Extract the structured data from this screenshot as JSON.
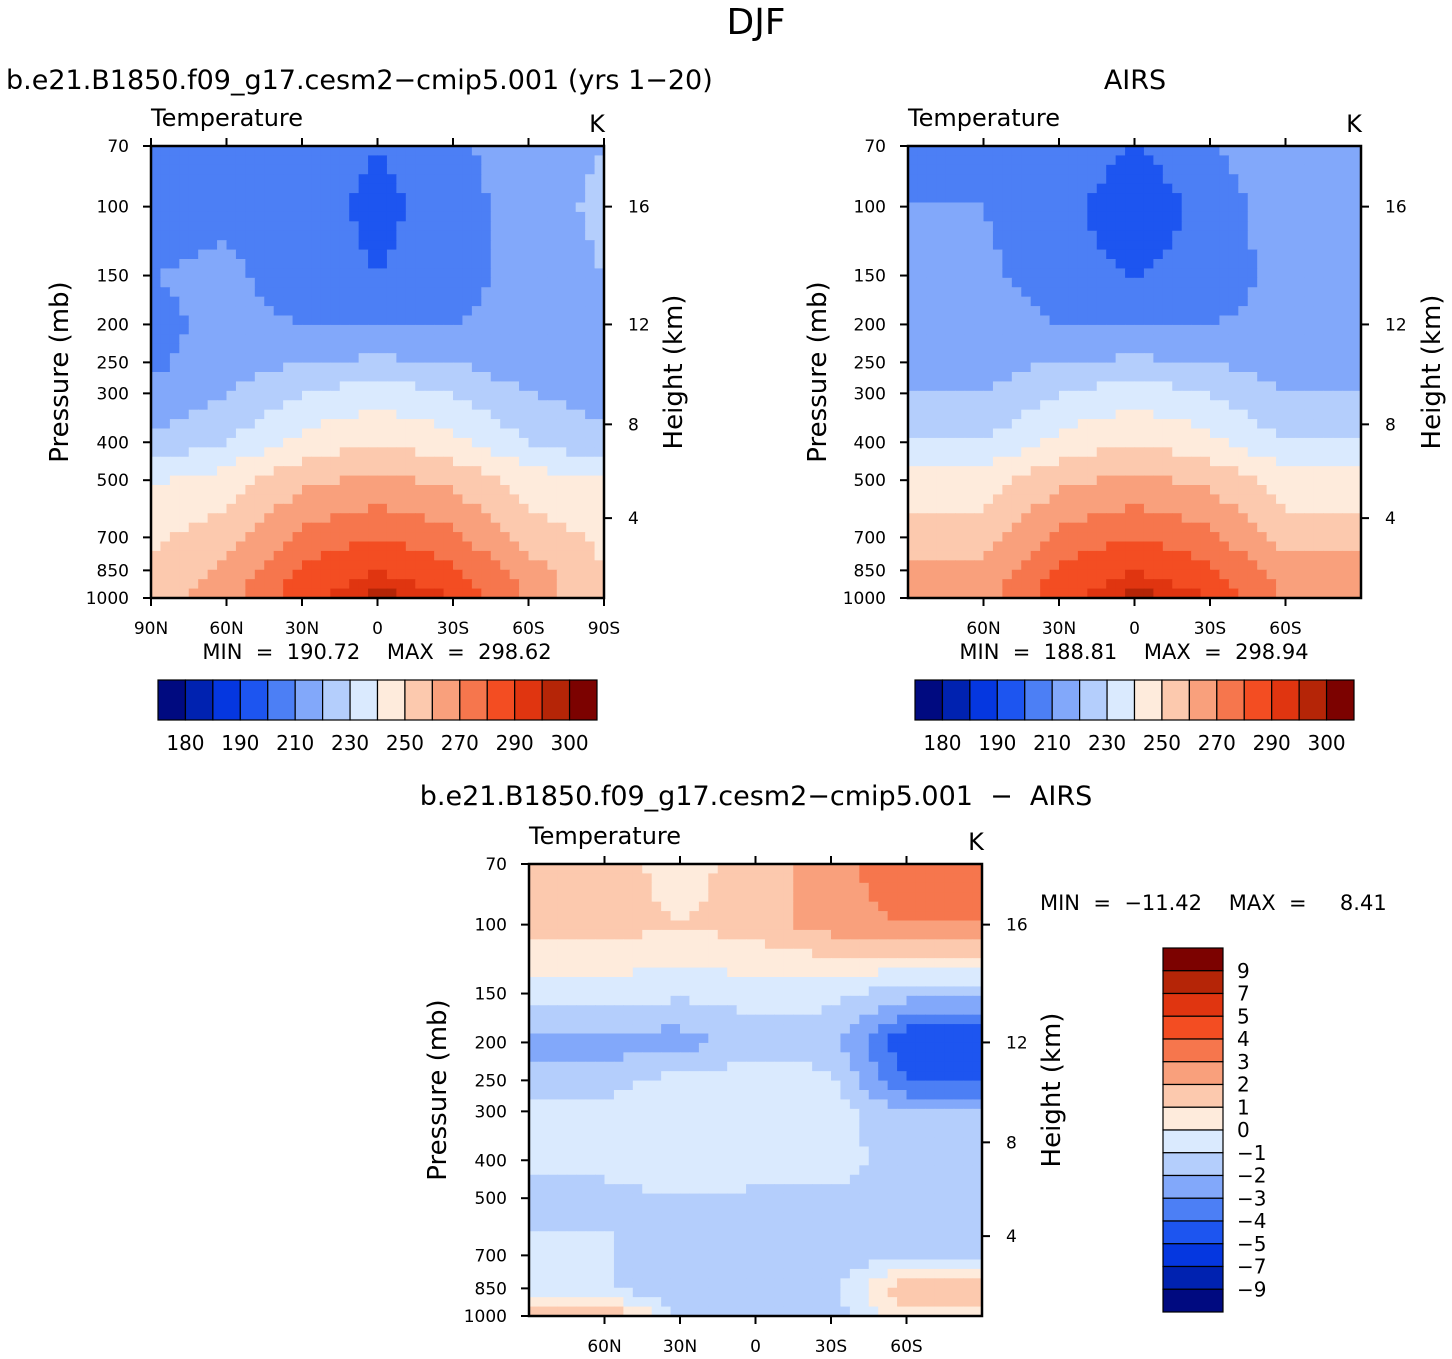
{
  "page_title": "DJF",
  "colors": {
    "abs_levels": [
      "#000a80",
      "#0022b0",
      "#0537e0",
      "#1d55f0",
      "#4c7ff5",
      "#82a8fa",
      "#b4cefc",
      "#daeafe",
      "#feebdc",
      "#fcc9ae",
      "#f9a07c",
      "#f6764d",
      "#f34d22",
      "#e03510",
      "#b52507",
      "#7c0200"
    ],
    "diff_levels": [
      "#000a80",
      "#0022b0",
      "#0537e0",
      "#1d55f0",
      "#4c7ff5",
      "#82a8fa",
      "#b4cefc",
      "#daeafe",
      "#feebdc",
      "#fcc9ae",
      "#f9a07c",
      "#f6764d",
      "#f34d22",
      "#e03510",
      "#b52507",
      "#7c0200"
    ]
  },
  "panels": {
    "model": {
      "title": "b.e21.B1850.f09_g17.cesm2−cmip5.001 (yrs 1−20)",
      "variable": "Temperature",
      "units": "K",
      "stats": "MIN  =  190.72    MAX  =  298.62",
      "ylabel": "Pressure (mb)",
      "ylabel_right": "Height (km)"
    },
    "obs": {
      "title": "AIRS",
      "variable": "Temperature",
      "units": "K",
      "stats": "MIN  =  188.81    MAX  =  298.94",
      "ylabel": "Pressure (mb)",
      "ylabel_right": "Height (km)"
    },
    "diff": {
      "title": "b.e21.B1850.f09_g17.cesm2−cmip5.001  −  AIRS",
      "variable": "Temperature",
      "units": "K",
      "stats": "MIN  =  −11.42    MAX  =     8.41",
      "ylabel": "Pressure (mb)",
      "ylabel_right": "Height (km)"
    }
  },
  "axes": {
    "pressure_ticks": [
      "70",
      "100",
      "150",
      "200",
      "250",
      "300",
      "400",
      "500",
      "700",
      "850",
      "1000"
    ],
    "height_ticks": [
      "16",
      "12",
      "8",
      "4"
    ],
    "lat_ticks_model": [
      "90N",
      "60N",
      "30N",
      "0",
      "30S",
      "60S",
      "90S"
    ],
    "lat_ticks_obs": [
      "60N",
      "30N",
      "0",
      "30S",
      "60S"
    ]
  },
  "colorbar_abs_labels": [
    "180",
    "190",
    "210",
    "230",
    "250",
    "270",
    "290",
    "300"
  ],
  "colorbar_diff_labels": [
    "9",
    "7",
    "5",
    "4",
    "3",
    "2",
    "1",
    "0",
    "−1",
    "−2",
    "−3",
    "−4",
    "−5",
    "−7",
    "−9"
  ],
  "chart_data": [
    {
      "type": "heatmap",
      "title": "b.e21.B1850.f09_g17.cesm2−cmip5.001 (yrs 1−20)",
      "subtitle": "Temperature",
      "units": "K",
      "ylabel": "Pressure (mb)",
      "y2label": "Height (km)",
      "x": [
        90,
        60,
        30,
        0,
        -30,
        -60,
        -90
      ],
      "x_labels": [
        "90N",
        "60N",
        "30N",
        "0",
        "30S",
        "60S",
        "90S"
      ],
      "y": [
        70,
        100,
        150,
        200,
        250,
        300,
        400,
        500,
        700,
        850,
        1000
      ],
      "y_scale": "log",
      "ylim": [
        1000,
        70
      ],
      "min": 190.72,
      "max": 298.62,
      "levels": [
        180,
        185,
        190,
        200,
        210,
        220,
        230,
        240,
        250,
        260,
        270,
        280,
        290,
        295,
        300
      ],
      "z_approx": [
        [
          205,
          210,
          208,
          200,
          208,
          215,
          220
        ],
        [
          205,
          208,
          205,
          197,
          205,
          216,
          222
        ],
        [
          210,
          212,
          205,
          200,
          205,
          215,
          220
        ],
        [
          208,
          212,
          210,
          208,
          210,
          213,
          215
        ],
        [
          208,
          215,
          220,
          222,
          220,
          213,
          213
        ],
        [
          212,
          220,
          230,
          235,
          230,
          220,
          216
        ],
        [
          222,
          230,
          243,
          250,
          243,
          230,
          222
        ],
        [
          238,
          245,
          258,
          262,
          258,
          245,
          240
        ],
        [
          248,
          255,
          272,
          280,
          272,
          255,
          248
        ],
        [
          253,
          262,
          282,
          290,
          282,
          265,
          250
        ],
        [
          255,
          265,
          288,
          298,
          290,
          268,
          250
        ]
      ]
    },
    {
      "type": "heatmap",
      "title": "AIRS",
      "subtitle": "Temperature",
      "units": "K",
      "ylabel": "Pressure (mb)",
      "y2label": "Height (km)",
      "x": [
        60,
        30,
        0,
        -30,
        -60
      ],
      "x_labels": [
        "60N",
        "30N",
        "0",
        "30S",
        "60S"
      ],
      "y": [
        70,
        100,
        150,
        200,
        250,
        300,
        400,
        500,
        700,
        850,
        1000
      ],
      "y_scale": "log",
      "ylim": [
        1000,
        70
      ],
      "min": 188.81,
      "max": 298.94,
      "levels": [
        180,
        185,
        190,
        200,
        210,
        220,
        230,
        240,
        250,
        260,
        270,
        280,
        290,
        295,
        300
      ],
      "z_approx": [
        [
          208,
          210,
          200,
          210,
          215
        ],
        [
          210,
          205,
          190,
          205,
          215
        ],
        [
          212,
          205,
          200,
          205,
          213
        ],
        [
          214,
          210,
          208,
          210,
          212
        ],
        [
          216,
          220,
          222,
          220,
          215
        ],
        [
          220,
          230,
          235,
          230,
          220
        ],
        [
          230,
          243,
          250,
          243,
          230
        ],
        [
          245,
          258,
          262,
          258,
          245
        ],
        [
          255,
          272,
          280,
          272,
          255
        ],
        [
          262,
          282,
          290,
          282,
          265
        ],
        [
          265,
          288,
          298,
          290,
          268
        ]
      ]
    },
    {
      "type": "heatmap",
      "title": "b.e21.B1850.f09_g17.cesm2−cmip5.001  −  AIRS",
      "subtitle": "Temperature",
      "units": "K",
      "ylabel": "Pressure (mb)",
      "y2label": "Height (km)",
      "x": [
        60,
        30,
        0,
        -30,
        -60
      ],
      "x_labels": [
        "60N",
        "30N",
        "0",
        "30S",
        "60S"
      ],
      "y": [
        70,
        100,
        150,
        200,
        250,
        300,
        400,
        500,
        700,
        850,
        1000
      ],
      "y_scale": "log",
      "ylim": [
        1000,
        70
      ],
      "min": -11.42,
      "max": 8.41,
      "levels": [
        -9,
        -7,
        -5,
        -4,
        -3,
        -2,
        -1,
        0,
        1,
        2,
        3,
        4,
        5,
        7,
        9
      ],
      "z_approx": [
        [
          1.5,
          0.5,
          1.5,
          2.5,
          4
        ],
        [
          1.5,
          1,
          1.5,
          2.5,
          3
        ],
        [
          -0.5,
          -0.8,
          -0.5,
          -0.8,
          -1.5
        ],
        [
          -2.5,
          -2.5,
          -1.5,
          -1.5,
          -5
        ],
        [
          -1.5,
          -0.5,
          -0.5,
          -0.8,
          -4
        ],
        [
          -0.5,
          -0.5,
          -0.5,
          -0.5,
          -2
        ],
        [
          -0.8,
          -0.5,
          -0.5,
          -0.5,
          -1.5
        ],
        [
          -1.2,
          -1,
          -1.2,
          -1.2,
          -1.5
        ],
        [
          -0.8,
          -2,
          -1,
          -1.5,
          -1.5
        ],
        [
          -0.8,
          -2,
          -1,
          -1.5,
          2
        ],
        [
          2,
          -1,
          -1.5,
          -1.5,
          0.5
        ]
      ]
    }
  ]
}
